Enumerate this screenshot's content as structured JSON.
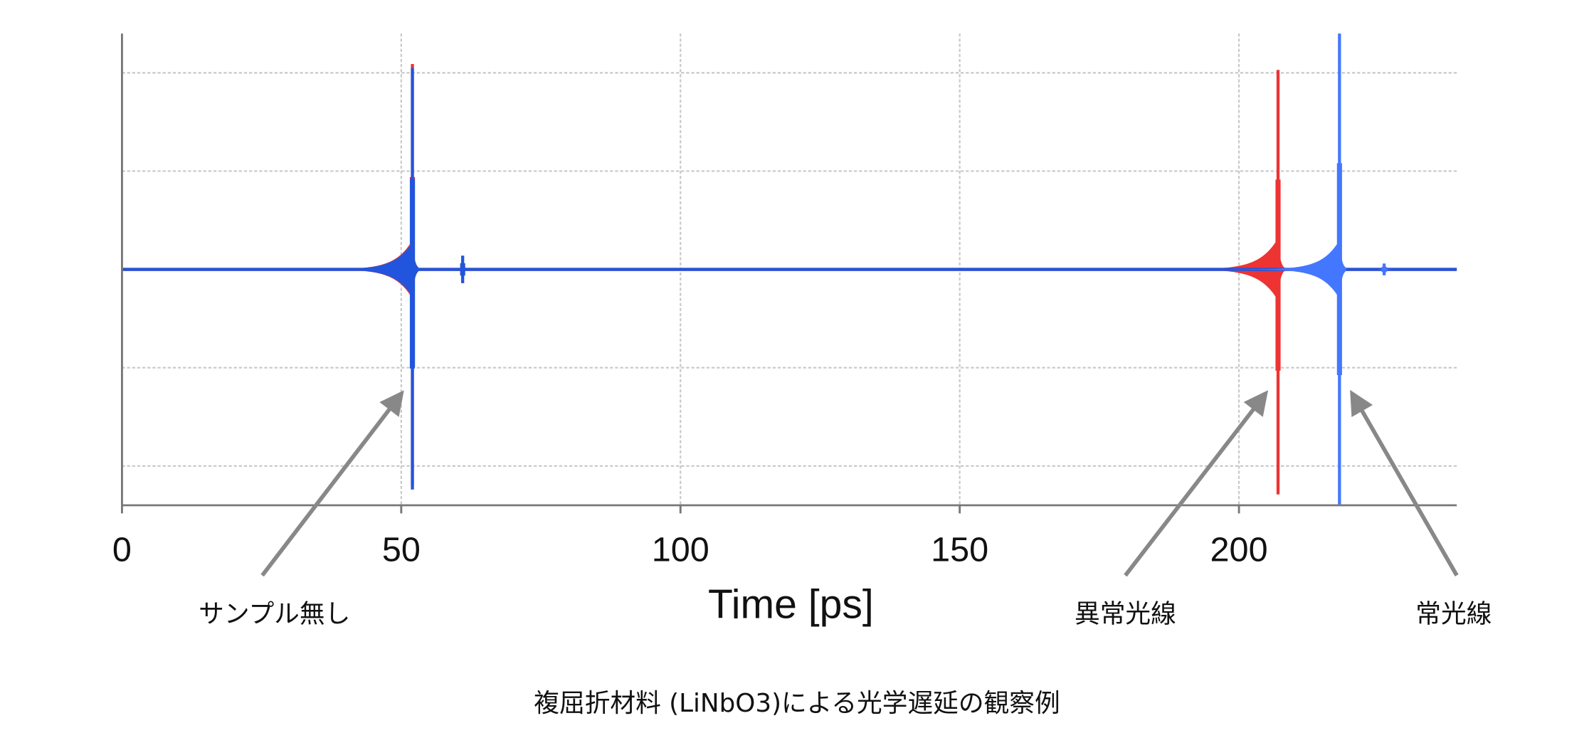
{
  "chart_data": {
    "type": "line",
    "title": "",
    "xlabel": "Time [ps]",
    "ylabel": "",
    "xlim": [
      0,
      239
    ],
    "ylim": [
      -2.4,
      2.4
    ],
    "x_ticks": [
      0,
      50,
      100,
      150,
      200
    ],
    "x_tick_labels": [
      "0",
      "50",
      "100",
      "150",
      "200"
    ],
    "y_grid": [
      -2,
      -1,
      0,
      1,
      2
    ],
    "grid": true,
    "y_tick_labels_shown": false,
    "colors": {
      "red": "#ee3333",
      "blue": "#2255dd",
      "light_blue": "#4477ff",
      "arrow": "#888888",
      "grid": "#c8c8c8",
      "axis": "#777777"
    },
    "series": [
      {
        "color": "#ee3333",
        "pulses": [
          {
            "t": 52,
            "max": 2.09,
            "min": -2.2,
            "precursor_amp": 0.3,
            "precursor_tau": 3.0
          },
          {
            "t": 207,
            "max": 2.03,
            "min": -2.29,
            "precursor_amp": 0.32,
            "precursor_tau": 3.2
          }
        ]
      },
      {
        "color": "#2255dd",
        "pulses": [
          {
            "t": 52,
            "max": 2.05,
            "min": -2.24,
            "precursor_amp": 0.28,
            "precursor_tau": 3.0
          },
          {
            "t": 61,
            "max": 0.14,
            "min": -0.14,
            "precursor_amp": 0.03,
            "precursor_tau": 0.3
          },
          {
            "t": 218,
            "max": 2.4,
            "min": -2.39,
            "precursor_amp": 0.3,
            "precursor_tau": 3.0
          },
          {
            "t": 226,
            "max": 0.06,
            "min": -0.06,
            "precursor_amp": 0.02,
            "precursor_tau": 0.3
          }
        ]
      }
    ],
    "annotations": [
      {
        "text": "サンプル無し",
        "points_to_t": 52
      },
      {
        "text": "異常光線",
        "points_to_t": 207
      },
      {
        "text": "常光線",
        "points_to_t": 218
      }
    ],
    "caption": "複屈折材料 (LiNbO3)による光学遅延の観察例"
  }
}
